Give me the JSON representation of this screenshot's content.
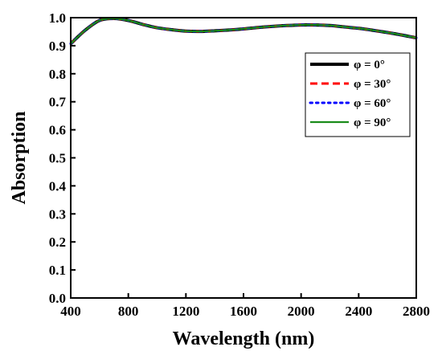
{
  "chart_data": {
    "type": "line",
    "xlabel": "Wavelength (nm)",
    "ylabel": "Absorption",
    "xlim": [
      400,
      2800
    ],
    "ylim": [
      0.0,
      1.0
    ],
    "xticks": [
      400,
      800,
      1200,
      1600,
      2000,
      2400,
      2800
    ],
    "yticks": [
      0.0,
      0.1,
      0.2,
      0.3,
      0.4,
      0.5,
      0.6,
      0.7,
      0.8,
      0.9,
      1.0
    ],
    "x": [
      400,
      500,
      600,
      700,
      800,
      900,
      1000,
      1100,
      1200,
      1300,
      1400,
      1500,
      1600,
      1700,
      1800,
      1900,
      2000,
      2100,
      2200,
      2300,
      2400,
      2500,
      2600,
      2700,
      2800
    ],
    "series": [
      {
        "name": "φ = 0°",
        "color": "#000000",
        "dash": "solid",
        "values": [
          0.907,
          0.955,
          0.99,
          0.997,
          0.99,
          0.976,
          0.964,
          0.957,
          0.952,
          0.951,
          0.953,
          0.956,
          0.96,
          0.965,
          0.969,
          0.972,
          0.974,
          0.974,
          0.972,
          0.967,
          0.962,
          0.955,
          0.947,
          0.938,
          0.928
        ]
      },
      {
        "name": "φ = 30°",
        "color": "#ff0000",
        "dash": "dashed",
        "values": [
          0.907,
          0.955,
          0.99,
          0.997,
          0.99,
          0.976,
          0.964,
          0.957,
          0.952,
          0.951,
          0.953,
          0.956,
          0.96,
          0.965,
          0.969,
          0.972,
          0.974,
          0.974,
          0.972,
          0.967,
          0.962,
          0.955,
          0.947,
          0.938,
          0.928
        ]
      },
      {
        "name": "φ = 60°",
        "color": "#0000ff",
        "dash": "dotted",
        "values": [
          0.907,
          0.955,
          0.99,
          0.997,
          0.99,
          0.976,
          0.964,
          0.957,
          0.952,
          0.951,
          0.953,
          0.956,
          0.96,
          0.965,
          0.969,
          0.972,
          0.974,
          0.974,
          0.972,
          0.967,
          0.962,
          0.955,
          0.947,
          0.938,
          0.928
        ]
      },
      {
        "name": "φ = 90°",
        "color": "#1a8c1a",
        "dash": "solid",
        "values": [
          0.907,
          0.955,
          0.99,
          0.997,
          0.99,
          0.976,
          0.964,
          0.957,
          0.952,
          0.951,
          0.953,
          0.956,
          0.96,
          0.965,
          0.969,
          0.972,
          0.974,
          0.974,
          0.972,
          0.967,
          0.962,
          0.955,
          0.947,
          0.938,
          0.928
        ]
      }
    ],
    "legend": "top-right",
    "grid": false
  }
}
